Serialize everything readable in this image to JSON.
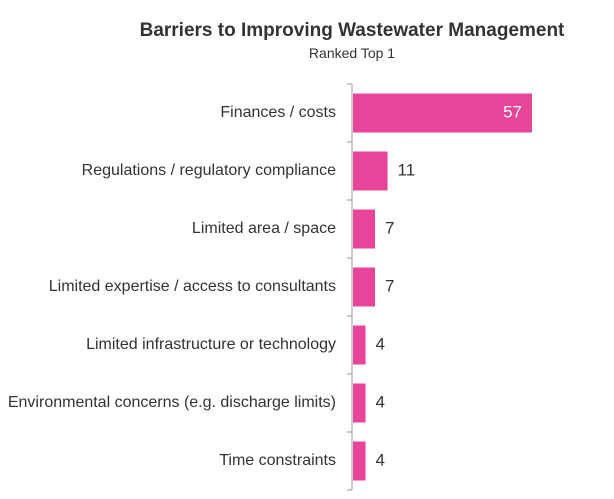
{
  "chart_data": {
    "type": "bar",
    "orientation": "horizontal",
    "title": "Barriers to Improving Wastewater Management",
    "subtitle": "Ranked Top 1",
    "categories": [
      "Finances / costs",
      "Regulations / regulatory compliance",
      "Limited area / space",
      "Limited expertise / access to consultants",
      "Limited infrastructure or technology",
      "Environmental concerns (e.g. discharge limits)",
      "Time constraints"
    ],
    "values": [
      57,
      11,
      7,
      7,
      4,
      4,
      4
    ],
    "xlabel": "",
    "ylabel": "",
    "xlim": [
      0,
      57
    ],
    "grid": false,
    "legend": "none",
    "bar_color": "#e8459a",
    "axis_color": "#999999"
  }
}
